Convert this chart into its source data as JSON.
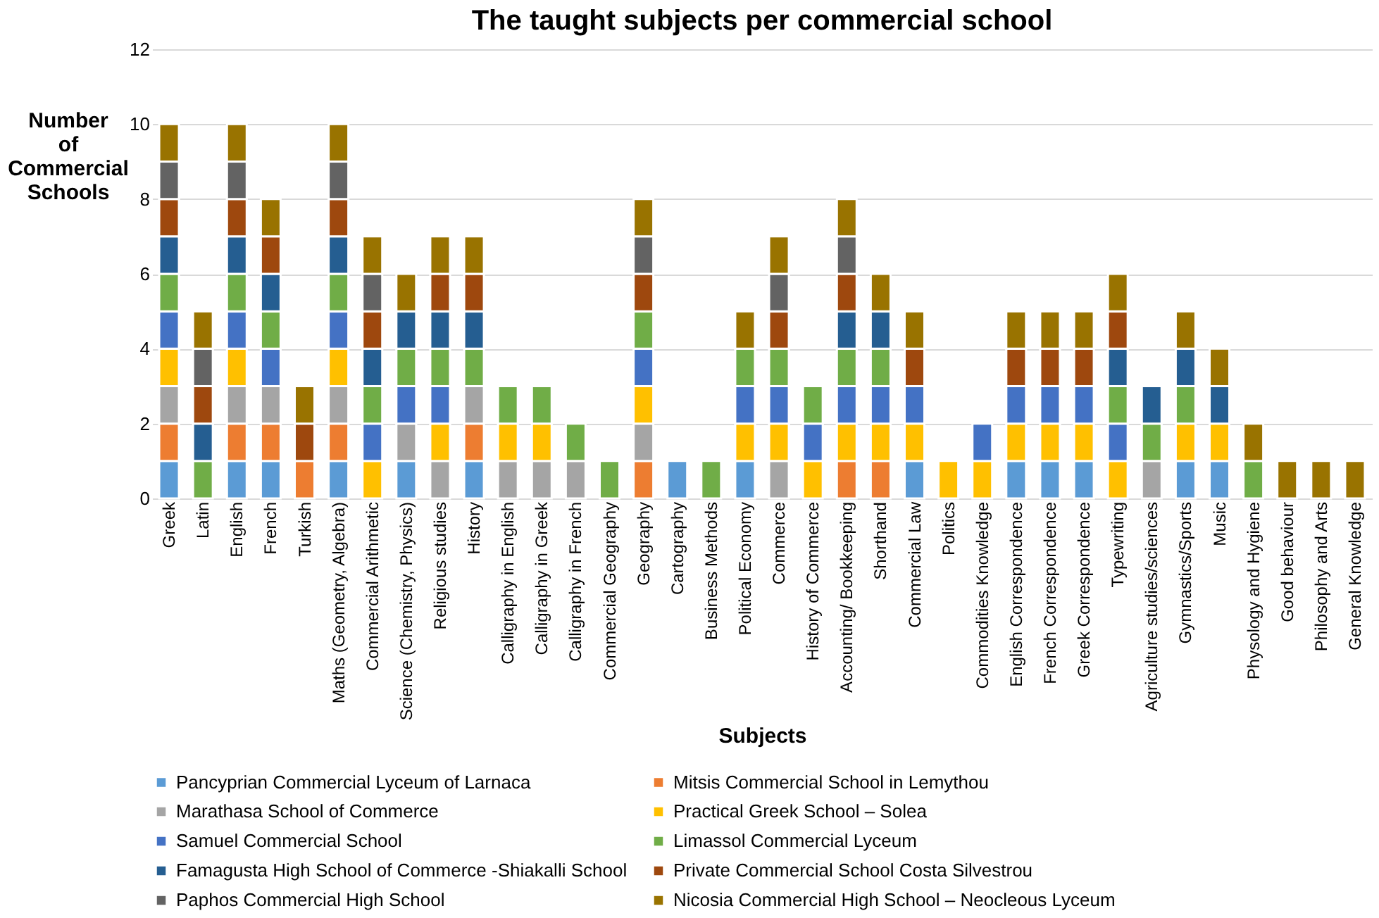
{
  "chart_data": {
    "type": "bar",
    "stacked": true,
    "title": "The taught subjects per commercial school",
    "xlabel": "Subjects",
    "ylabel": "Number of Commercial Schools",
    "categories": [
      "Greek",
      "Latin",
      "English",
      "French",
      "Turkish",
      "Maths (Geometry, Algebra)",
      "Commercial Arithmetic",
      "Science (Chemistry, Physics)",
      "Religious studies",
      "History",
      "Calligraphy in English",
      "Calligraphy in Greek",
      "Calligraphy in French",
      "Commercial Geography",
      "Geography",
      "Cartography",
      "Business Methods",
      "Political Economy",
      "Commerce",
      "History of Commerce",
      "Accounting/ Bookkeeping",
      "Shorthand",
      "Commercial Law",
      "Politics",
      "Commodities Knowledge",
      "English Correspondence",
      "French Correspondence",
      "Greek Correspondence",
      "Typewriting",
      "Agriculture studies/sciences",
      "Gymnastics/Sports",
      "Music",
      "Physology and Hygiene",
      "Good behaviour",
      "Philosophy and Arts",
      "General Knowledge"
    ],
    "series": [
      {
        "name": "Pancyprian Commercial Lyceum of Larnaca",
        "color": "#5b9bd5",
        "values": [
          1,
          0,
          1,
          1,
          0,
          1,
          0,
          1,
          0,
          1,
          0,
          0,
          0,
          0,
          0,
          1,
          0,
          1,
          0,
          0,
          0,
          0,
          1,
          0,
          0,
          1,
          1,
          1,
          0,
          0,
          1,
          1,
          0,
          0,
          0,
          0
        ]
      },
      {
        "name": "Mitsis Commercial School in Lemythou",
        "color": "#ed7d31",
        "values": [
          1,
          0,
          1,
          1,
          1,
          1,
          0,
          0,
          0,
          1,
          0,
          0,
          0,
          0,
          1,
          0,
          0,
          0,
          0,
          0,
          1,
          1,
          0,
          0,
          0,
          0,
          0,
          0,
          0,
          0,
          0,
          0,
          0,
          0,
          0,
          0
        ]
      },
      {
        "name": "Marathasa School of Commerce",
        "color": "#a5a5a5",
        "values": [
          1,
          0,
          1,
          1,
          0,
          1,
          0,
          1,
          1,
          1,
          1,
          1,
          1,
          0,
          1,
          0,
          0,
          0,
          1,
          0,
          0,
          0,
          0,
          0,
          0,
          0,
          0,
          0,
          0,
          1,
          0,
          0,
          0,
          0,
          0,
          0
        ]
      },
      {
        "name": "Practical Greek School – Solea",
        "color": "#ffc000",
        "values": [
          1,
          0,
          1,
          0,
          0,
          1,
          1,
          0,
          1,
          0,
          1,
          1,
          0,
          0,
          1,
          0,
          0,
          1,
          1,
          1,
          1,
          1,
          1,
          1,
          1,
          1,
          1,
          1,
          1,
          0,
          1,
          1,
          0,
          0,
          0,
          0
        ]
      },
      {
        "name": "Samuel Commercial School",
        "color": "#4472c4",
        "values": [
          1,
          0,
          1,
          1,
          0,
          1,
          1,
          1,
          1,
          0,
          0,
          0,
          0,
          0,
          1,
          0,
          0,
          1,
          1,
          1,
          1,
          1,
          1,
          0,
          1,
          1,
          1,
          1,
          1,
          0,
          0,
          0,
          0,
          0,
          0,
          0
        ]
      },
      {
        "name": "Limassol Commercial Lyceum",
        "color": "#70ad47",
        "values": [
          1,
          1,
          1,
          1,
          0,
          1,
          1,
          1,
          1,
          1,
          1,
          1,
          1,
          1,
          1,
          0,
          1,
          1,
          1,
          1,
          1,
          1,
          0,
          0,
          0,
          0,
          0,
          0,
          1,
          1,
          1,
          0,
          1,
          0,
          0,
          0
        ]
      },
      {
        "name": "Famagusta High School of Commerce -Shiakalli School",
        "color": "#255e91",
        "values": [
          1,
          1,
          1,
          1,
          0,
          1,
          1,
          1,
          1,
          1,
          0,
          0,
          0,
          0,
          0,
          0,
          0,
          0,
          0,
          0,
          1,
          1,
          0,
          0,
          0,
          0,
          0,
          0,
          1,
          1,
          1,
          1,
          0,
          0,
          0,
          0
        ]
      },
      {
        "name": "Private Commercial School Costa Silvestrou",
        "color": "#9e480e",
        "values": [
          1,
          1,
          1,
          1,
          1,
          1,
          1,
          0,
          1,
          1,
          0,
          0,
          0,
          0,
          1,
          0,
          0,
          0,
          1,
          0,
          1,
          0,
          1,
          0,
          0,
          1,
          1,
          1,
          1,
          0,
          0,
          0,
          0,
          0,
          0,
          0
        ]
      },
      {
        "name": "Paphos Commercial High School",
        "color": "#636363",
        "values": [
          1,
          1,
          1,
          0,
          0,
          1,
          1,
          0,
          0,
          0,
          0,
          0,
          0,
          0,
          1,
          0,
          0,
          0,
          1,
          0,
          1,
          0,
          0,
          0,
          0,
          0,
          0,
          0,
          0,
          0,
          0,
          0,
          0,
          0,
          0,
          0
        ]
      },
      {
        "name": "Nicosia Commercial High School – Neocleous Lyceum",
        "color": "#997300",
        "values": [
          1,
          1,
          1,
          1,
          1,
          1,
          1,
          1,
          1,
          1,
          0,
          0,
          0,
          0,
          1,
          0,
          0,
          1,
          1,
          0,
          1,
          1,
          1,
          0,
          0,
          1,
          1,
          1,
          1,
          0,
          1,
          1,
          1,
          1,
          1,
          1
        ]
      }
    ],
    "ylim": [
      0,
      12
    ],
    "yticks": [
      0,
      2,
      4,
      6,
      8,
      10,
      12
    ],
    "grid": "y",
    "legend": "bottom"
  }
}
